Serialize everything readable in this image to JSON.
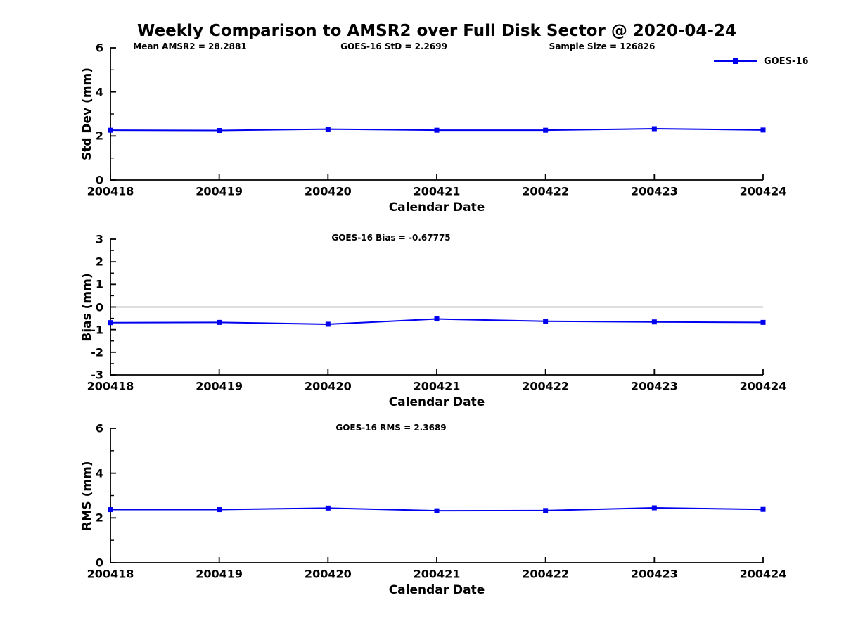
{
  "header": {
    "title": "Weekly Comparison to AMSR2 over Full Disk Sector @ 2020-04-24"
  },
  "legend": {
    "label": "GOES-16",
    "color": "#0000ee",
    "marker": "square-marker"
  },
  "colors": {
    "line": "#0000ee",
    "axis": "#000000",
    "zero_line": "#000000",
    "background": "#ffffff"
  },
  "chart_data": [
    {
      "type": "line",
      "annotations": [
        "Mean AMSR2 = 28.2881",
        "GOES-16 StD = 2.2699",
        "Sample Size = 126826"
      ],
      "xlabel": "Calendar Date",
      "ylabel": "Std Dev (mm)",
      "categories": [
        "200418",
        "200419",
        "200420",
        "200421",
        "200422",
        "200423",
        "200424"
      ],
      "ylim": [
        0,
        6
      ],
      "yticks": [
        0,
        2,
        4,
        6
      ],
      "yminor": [
        1,
        3,
        5
      ],
      "zero_line": false,
      "grid": false,
      "legend_position": "outside-top-right",
      "series": [
        {
          "name": "GOES-16",
          "color": "#0000ee",
          "marker": "square",
          "values": [
            2.26,
            2.25,
            2.31,
            2.26,
            2.26,
            2.33,
            2.27
          ]
        }
      ]
    },
    {
      "type": "line",
      "annotations": [
        "GOES-16 Bias  = -0.67775"
      ],
      "xlabel": "Calendar Date",
      "ylabel": "Bias (mm)",
      "categories": [
        "200418",
        "200419",
        "200420",
        "200421",
        "200422",
        "200423",
        "200424"
      ],
      "ylim": [
        -3,
        3
      ],
      "yticks": [
        -3,
        -2,
        -1,
        0,
        1,
        2,
        3
      ],
      "yminor": [
        -2.5,
        -1.5,
        -0.5,
        0.5,
        1.5,
        2.5
      ],
      "zero_line": true,
      "grid": false,
      "series": [
        {
          "name": "GOES-16",
          "color": "#0000ee",
          "marker": "square",
          "values": [
            -0.69,
            -0.68,
            -0.76,
            -0.53,
            -0.63,
            -0.66,
            -0.68
          ]
        }
      ]
    },
    {
      "type": "line",
      "annotations": [
        "GOES-16 RMS = 2.3689"
      ],
      "xlabel": "Calendar Date",
      "ylabel": "RMS (mm)",
      "categories": [
        "200418",
        "200419",
        "200420",
        "200421",
        "200422",
        "200423",
        "200424"
      ],
      "ylim": [
        0,
        6
      ],
      "yticks": [
        0,
        2,
        4,
        6
      ],
      "yminor": [
        1,
        3,
        5
      ],
      "zero_line": false,
      "grid": false,
      "series": [
        {
          "name": "GOES-16",
          "color": "#0000ee",
          "marker": "square",
          "values": [
            2.37,
            2.37,
            2.44,
            2.32,
            2.33,
            2.45,
            2.38
          ]
        }
      ]
    }
  ]
}
